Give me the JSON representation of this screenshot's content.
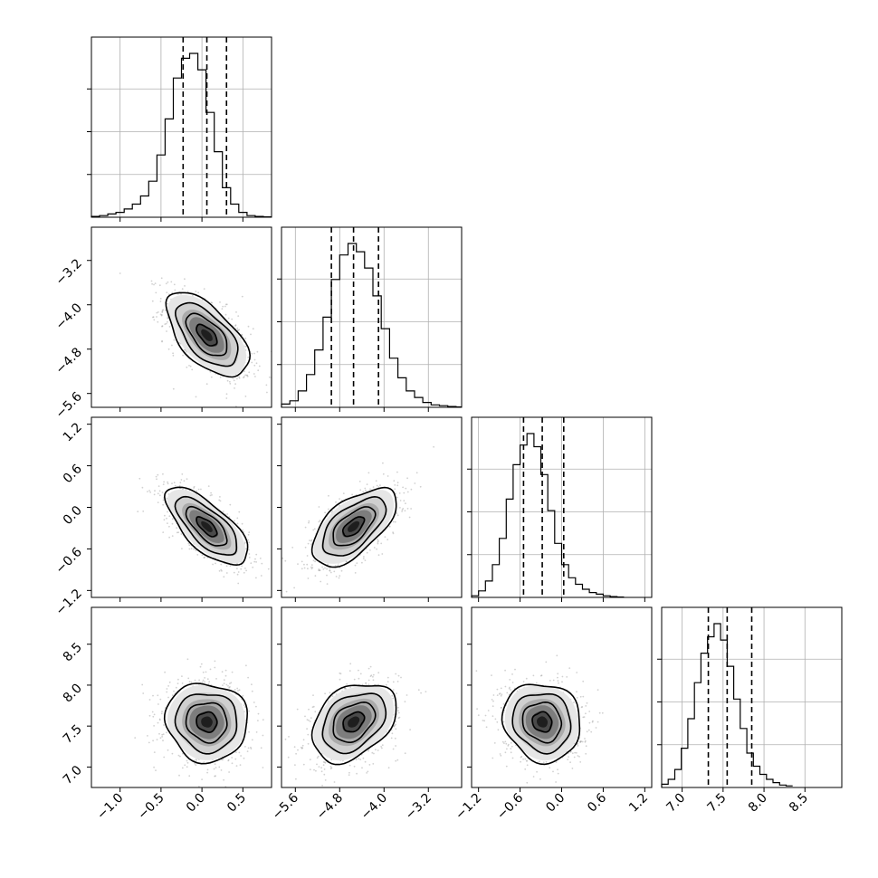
{
  "chart_data": {
    "type": "scatter",
    "kind": "corner-plot",
    "grid": true,
    "n_params": 4,
    "params": [
      {
        "range": [
          -1.35,
          0.85
        ],
        "ticks": [
          -1.0,
          -0.5,
          0.0,
          0.5
        ],
        "tick_labels": [
          "−1.0",
          "−0.5",
          "0.0",
          "0.5"
        ],
        "hist": {
          "bin_edges_from": -1.35,
          "bin_width": 0.1,
          "counts": [
            0.005,
            0.01,
            0.02,
            0.03,
            0.05,
            0.08,
            0.13,
            0.22,
            0.38,
            0.6,
            0.85,
            0.97,
            1.0,
            0.9,
            0.64,
            0.4,
            0.18,
            0.08,
            0.03,
            0.01,
            0.005,
            0.002
          ]
        },
        "quantiles": [
          -0.23,
          0.06,
          0.3
        ]
      },
      {
        "range": [
          -5.85,
          -2.6
        ],
        "ticks": [
          -5.6,
          -4.8,
          -4.0,
          -3.2
        ],
        "tick_labels": [
          "−5.6",
          "−4.8",
          "−4.0",
          "−3.2"
        ],
        "hist": {
          "bin_edges_from": -5.85,
          "bin_width": 0.15,
          "counts": [
            0.02,
            0.04,
            0.1,
            0.2,
            0.35,
            0.55,
            0.78,
            0.93,
            1.0,
            0.95,
            0.85,
            0.68,
            0.48,
            0.3,
            0.18,
            0.1,
            0.06,
            0.03,
            0.015,
            0.01,
            0.005,
            0.002
          ]
        },
        "quantiles": [
          -4.95,
          -4.55,
          -4.1
        ]
      },
      {
        "range": [
          -1.3,
          1.3
        ],
        "ticks": [
          -1.2,
          -0.6,
          0.0,
          0.6,
          1.2
        ],
        "tick_labels": [
          "−1.2",
          "−0.6",
          "0.0",
          "0.6",
          "1.2"
        ],
        "hist": {
          "bin_edges_from": -1.3,
          "bin_width": 0.1,
          "counts": [
            0.01,
            0.04,
            0.1,
            0.2,
            0.36,
            0.6,
            0.81,
            0.93,
            1.0,
            0.92,
            0.75,
            0.53,
            0.33,
            0.2,
            0.12,
            0.08,
            0.05,
            0.03,
            0.02,
            0.01,
            0.005,
            0.002
          ]
        },
        "quantiles": [
          -0.55,
          -0.28,
          0.03
        ]
      },
      {
        "range": [
          6.75,
          8.95
        ],
        "ticks": [
          7.0,
          7.5,
          8.0,
          8.5
        ],
        "tick_labels": [
          "7.0",
          "7.5",
          "8.0",
          "8.5"
        ],
        "hist": {
          "bin_edges_from": 6.75,
          "bin_width": 0.08,
          "counts": [
            0.02,
            0.05,
            0.11,
            0.24,
            0.42,
            0.64,
            0.82,
            0.92,
            1.0,
            0.9,
            0.74,
            0.54,
            0.36,
            0.21,
            0.13,
            0.08,
            0.05,
            0.03,
            0.015,
            0.01
          ]
        },
        "quantiles": [
          7.32,
          7.55,
          7.85
        ]
      }
    ],
    "joint": [
      {
        "row": 1,
        "col": 0,
        "mean": [
          0.06,
          -4.55
        ],
        "sd": [
          0.25,
          0.38
        ],
        "rho": -0.6
      },
      {
        "row": 2,
        "col": 0,
        "mean": [
          0.06,
          -0.28
        ],
        "sd": [
          0.25,
          0.28
        ],
        "rho": -0.7
      },
      {
        "row": 2,
        "col": 1,
        "mean": [
          -4.55,
          -0.28
        ],
        "sd": [
          0.38,
          0.28
        ],
        "rho": 0.6
      },
      {
        "row": 3,
        "col": 0,
        "mean": [
          0.06,
          7.55
        ],
        "sd": [
          0.25,
          0.24
        ],
        "rho": -0.05
      },
      {
        "row": 3,
        "col": 1,
        "mean": [
          -4.55,
          7.55
        ],
        "sd": [
          0.38,
          0.24
        ],
        "rho": 0.35
      },
      {
        "row": 3,
        "col": 2,
        "mean": [
          -0.28,
          7.55
        ],
        "sd": [
          0.28,
          0.24
        ],
        "rho": -0.1
      }
    ],
    "contour_levels_sigma": [
      0.5,
      1.0,
      1.5,
      2.0
    ]
  }
}
